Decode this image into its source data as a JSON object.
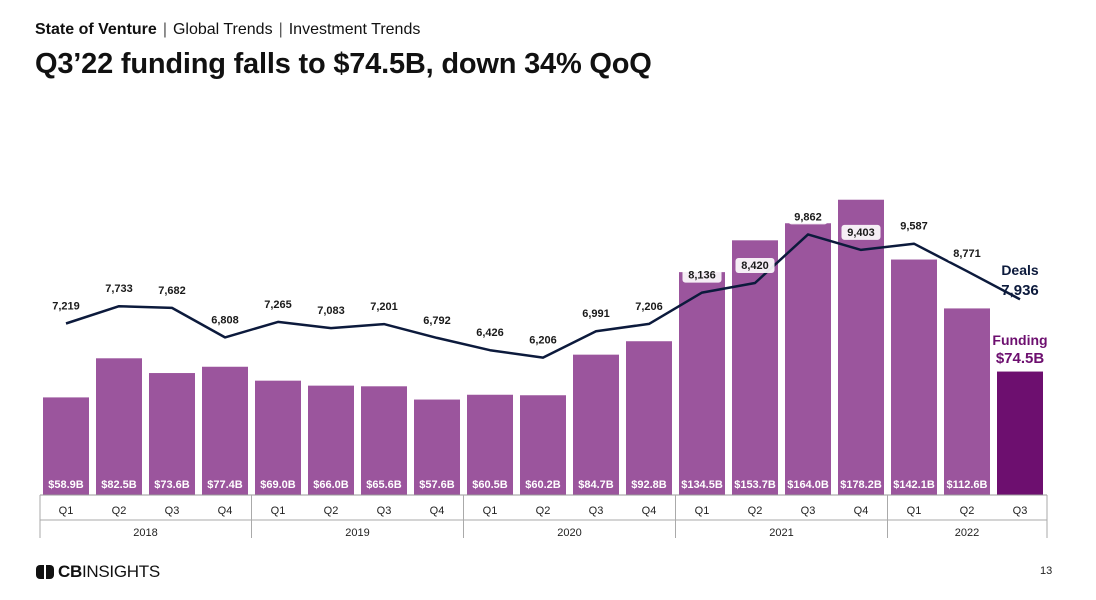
{
  "header": {
    "breadcrumb": [
      "State of Venture",
      "Global Trends",
      "Investment Trends"
    ],
    "title": "Q3’22 funding falls to $74.5B, down 34% QoQ"
  },
  "footer": {
    "logo_bold": "CB",
    "logo_rest": "INSIGHTS",
    "page_number": "13"
  },
  "colors": {
    "bar": "#9b559d",
    "bar_highlight": "#6d0f6f",
    "line": "#0c1a3c",
    "funding_label": "#6d0f6f",
    "deals_label": "#0c1a3c"
  },
  "chart_data": {
    "type": "bar",
    "quarters": [
      "Q1",
      "Q2",
      "Q3",
      "Q4",
      "Q1",
      "Q2",
      "Q3",
      "Q4",
      "Q1",
      "Q2",
      "Q3",
      "Q4",
      "Q1",
      "Q2",
      "Q3",
      "Q4",
      "Q1",
      "Q2",
      "Q3"
    ],
    "years": [
      {
        "label": "2018",
        "count": 4
      },
      {
        "label": "2019",
        "count": 4
      },
      {
        "label": "2020",
        "count": 4
      },
      {
        "label": "2021",
        "count": 4
      },
      {
        "label": "2022",
        "count": 3
      }
    ],
    "series": [
      {
        "name": "Funding",
        "type": "bar",
        "values": [
          58.9,
          82.5,
          73.6,
          77.4,
          69.0,
          66.0,
          65.6,
          57.6,
          60.5,
          60.2,
          84.7,
          92.8,
          134.5,
          153.7,
          164.0,
          178.2,
          142.1,
          112.6,
          74.5
        ],
        "labels": [
          "$58.9B",
          "$82.5B",
          "$73.6B",
          "$77.4B",
          "$69.0B",
          "$66.0B",
          "$65.6B",
          "$57.6B",
          "$60.5B",
          "$60.2B",
          "$84.7B",
          "$92.8B",
          "$134.5B",
          "$153.7B",
          "$164.0B",
          "$178.2B",
          "$142.1B",
          "$112.6B",
          ""
        ]
      },
      {
        "name": "Deals",
        "type": "line",
        "values": [
          7219,
          7733,
          7682,
          6808,
          7265,
          7083,
          7201,
          6792,
          6426,
          6206,
          6991,
          7206,
          8136,
          8420,
          9862,
          9403,
          9587,
          8771,
          7936
        ],
        "labels": [
          "7,219",
          "7,733",
          "7,682",
          "6,808",
          "7,265",
          "7,083",
          "7,201",
          "6,792",
          "6,426",
          "6,206",
          "6,991",
          "7,206",
          "8,136",
          "8,420",
          "9,862",
          "9,403",
          "9,587",
          "8,771",
          ""
        ]
      }
    ],
    "callouts": {
      "deals_name": "Deals",
      "deals_value": "7,936",
      "funding_name": "Funding",
      "funding_value": "$74.5B"
    },
    "grid": false
  }
}
